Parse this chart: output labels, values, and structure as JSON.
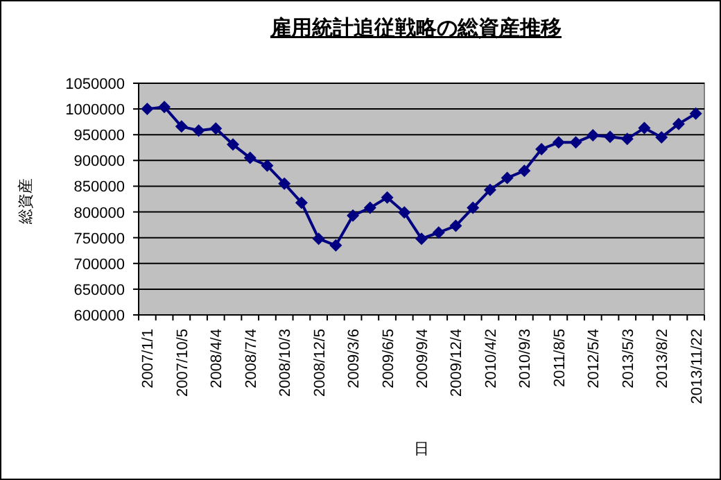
{
  "chart_data": {
    "type": "line",
    "title": "雇用統計追従戦略の総資産推移",
    "xlabel": "日",
    "ylabel": "総資産",
    "categories": [
      "2007/1/1",
      null,
      "2007/10/5",
      null,
      "2008/4/4",
      null,
      "2008/7/4",
      null,
      "2008/10/3",
      null,
      "2008/12/5",
      null,
      "2009/3/6",
      null,
      "2009/6/5",
      null,
      "2009/9/4",
      null,
      "2009/12/4",
      null,
      "2010/4/2",
      null,
      "2010/9/3",
      null,
      "2011/8/5",
      null,
      "2012/5/4",
      null,
      "2013/5/3",
      null,
      "2013/8/2",
      null,
      "2013/11/22"
    ],
    "series": [
      {
        "color": "#000080",
        "values": [
          1000000,
          1004000,
          966000,
          958000,
          962000,
          931000,
          905000,
          890000,
          855000,
          818000,
          748000,
          735000,
          793000,
          808000,
          828000,
          799000,
          748000,
          760000,
          773000,
          808000,
          843000,
          866000,
          880000,
          922000,
          935000,
          935000,
          949000,
          946000,
          942000,
          963000,
          945000,
          971000,
          991000
        ]
      }
    ],
    "ylim": [
      600000,
      1050000
    ],
    "yticks": [
      600000,
      650000,
      700000,
      750000,
      800000,
      850000,
      900000,
      950000,
      1000000,
      1050000
    ],
    "grid": "y",
    "marker": "diamond"
  }
}
